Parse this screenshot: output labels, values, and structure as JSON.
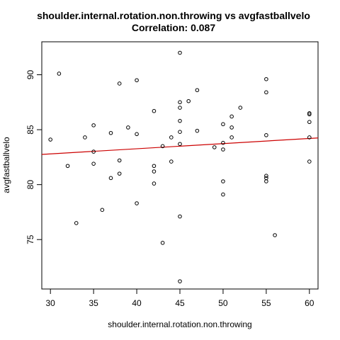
{
  "chart_data": {
    "type": "scatter",
    "title": "shoulder.internal.rotation.non.throwing vs avgfastballvelo",
    "subtitle": "Correlation: 0.087",
    "xlabel": "shoulder.internal.rotation.non.throwing",
    "ylabel": "avgfastballvelo",
    "xlim": [
      29,
      61
    ],
    "ylim": [
      70.5,
      93
    ],
    "x_ticks": [
      30,
      35,
      40,
      45,
      50,
      55,
      60
    ],
    "y_ticks": [
      75,
      80,
      85,
      90
    ],
    "grid": false,
    "point_color": "#000000",
    "fit_line_color": "#cc0000",
    "fit_line": {
      "x": [
        29,
        61
      ],
      "y": [
        82.75,
        84.25
      ]
    },
    "points": [
      [
        30,
        84.1
      ],
      [
        31,
        90.1
      ],
      [
        32,
        81.7
      ],
      [
        33,
        76.5
      ],
      [
        34,
        84.3
      ],
      [
        35,
        85.4
      ],
      [
        35,
        83.0
      ],
      [
        35,
        81.9
      ],
      [
        36,
        77.7
      ],
      [
        37,
        84.7
      ],
      [
        37,
        80.6
      ],
      [
        38,
        89.2
      ],
      [
        38,
        82.2
      ],
      [
        38,
        81.0
      ],
      [
        39,
        85.2
      ],
      [
        40,
        89.5
      ],
      [
        40,
        84.6
      ],
      [
        40,
        78.3
      ],
      [
        42,
        86.7
      ],
      [
        42,
        81.7
      ],
      [
        42,
        81.2
      ],
      [
        42,
        80.1
      ],
      [
        43,
        83.5
      ],
      [
        43,
        74.7
      ],
      [
        44,
        84.3
      ],
      [
        44,
        82.1
      ],
      [
        45,
        92.0
      ],
      [
        45,
        87.5
      ],
      [
        45,
        87.0
      ],
      [
        45,
        85.8
      ],
      [
        45,
        84.8
      ],
      [
        45,
        83.7
      ],
      [
        45,
        77.1
      ],
      [
        45,
        71.2
      ],
      [
        46,
        87.6
      ],
      [
        47,
        88.6
      ],
      [
        47,
        84.9
      ],
      [
        49,
        83.4
      ],
      [
        50,
        85.5
      ],
      [
        50,
        83.8
      ],
      [
        50,
        83.2
      ],
      [
        50,
        80.3
      ],
      [
        50,
        79.1
      ],
      [
        51,
        86.2
      ],
      [
        51,
        85.2
      ],
      [
        51,
        84.3
      ],
      [
        52,
        87.0
      ],
      [
        55,
        89.6
      ],
      [
        55,
        88.4
      ],
      [
        55,
        84.5
      ],
      [
        55,
        80.8
      ],
      [
        55,
        80.6
      ],
      [
        55,
        80.3
      ],
      [
        56,
        75.4
      ],
      [
        60,
        86.5
      ],
      [
        60,
        86.4
      ],
      [
        60,
        85.7
      ],
      [
        60,
        84.3
      ],
      [
        60,
        82.1
      ]
    ]
  }
}
